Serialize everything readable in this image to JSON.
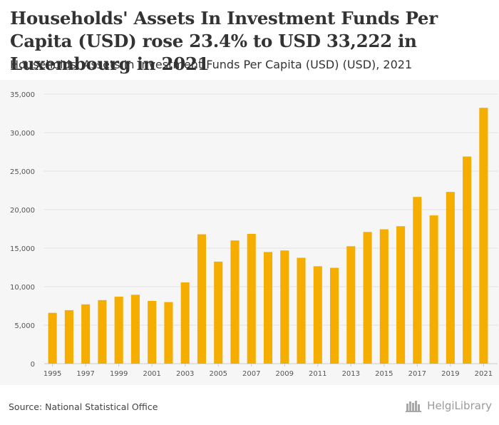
{
  "page": {
    "title": "Households' Assets In Investment Funds Per Capita (USD) rose 23.4% to USD 33,222 in Luxembourg in 2021",
    "subtitle": "Households' Assets In Investment Funds Per Capita (USD) (USD), 2021",
    "source": "Source: National Statistical Office",
    "brand": "HelgiLibrary"
  },
  "colors": {
    "bar": "#f5ad00",
    "grid": "#e2e2e2",
    "axis_text": "#555555",
    "background": "#f6f6f6"
  },
  "chart_data": {
    "type": "bar",
    "title": "Households' Assets In Investment Funds Per Capita (USD) (USD), 2021",
    "xlabel": "",
    "ylabel": "",
    "ylim": [
      0,
      35000
    ],
    "yticks": [
      0,
      5000,
      10000,
      15000,
      20000,
      25000,
      30000,
      35000
    ],
    "ytick_labels": [
      "0",
      "5,000",
      "10,000",
      "15,000",
      "20,000",
      "25,000",
      "30,000",
      "35,000"
    ],
    "grid": true,
    "categories": [
      "1995",
      "1996",
      "1997",
      "1998",
      "1999",
      "2000",
      "2001",
      "2002",
      "2003",
      "2004",
      "2005",
      "2006",
      "2007",
      "2008",
      "2009",
      "2010",
      "2011",
      "2012",
      "2013",
      "2014",
      "2015",
      "2016",
      "2017",
      "2018",
      "2019",
      "2020",
      "2021"
    ],
    "xtick_labels": [
      "1995",
      "1997",
      "1999",
      "2001",
      "2003",
      "2005",
      "2007",
      "2009",
      "2011",
      "2013",
      "2015",
      "2017",
      "2019",
      "2021"
    ],
    "values": [
      6600,
      6950,
      7700,
      8250,
      8700,
      8950,
      8150,
      8000,
      10550,
      16800,
      13250,
      16000,
      16850,
      14500,
      14700,
      13750,
      12650,
      12450,
      15250,
      17100,
      17450,
      17850,
      21650,
      19250,
      22300,
      26900,
      33222
    ]
  }
}
